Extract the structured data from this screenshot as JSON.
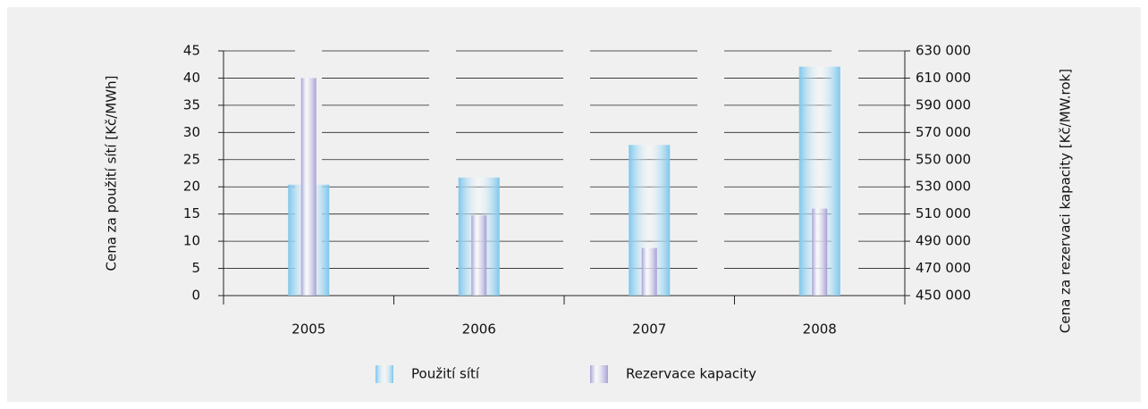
{
  "chart_data": {
    "type": "bar",
    "categories": [
      "2005",
      "2006",
      "2007",
      "2008"
    ],
    "series": [
      {
        "name": "Použití sítí",
        "color": "#7cc6ec",
        "values": [
          20.4,
          21.7,
          27.7,
          42.1
        ]
      },
      {
        "name": "Rezervace kapacity",
        "color": "#a6a0d4",
        "axis": "y2",
        "values": [
          610000,
          509000,
          485000,
          514000
        ]
      }
    ],
    "ylabel": "Cena za použití sítí [Kč/MWh]",
    "y2label": "Cena za rezervaci kapacity [Kč/MW.rok]",
    "ylim": [
      0,
      45
    ],
    "yticks": [
      0,
      5,
      10,
      15,
      20,
      25,
      30,
      35,
      40,
      45
    ],
    "y2lim": [
      450000,
      630000
    ],
    "y2ticks": [
      {
        "value": 450000,
        "label": "450 000"
      },
      {
        "value": 470000,
        "label": "470 000"
      },
      {
        "value": 490000,
        "label": "490 000"
      },
      {
        "value": 510000,
        "label": "510 000"
      },
      {
        "value": 530000,
        "label": "530 000"
      },
      {
        "value": 550000,
        "label": "550 000"
      },
      {
        "value": 570000,
        "label": "570 000"
      },
      {
        "value": 590000,
        "label": "590 000"
      },
      {
        "value": 610000,
        "label": "610 000"
      },
      {
        "value": 630000,
        "label": "630 000"
      }
    ],
    "grid": true
  }
}
